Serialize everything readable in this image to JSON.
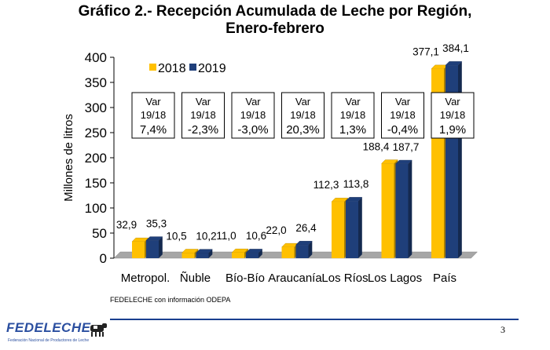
{
  "title_line1": "Gráfico 2.- Recepción Acumulada de Leche por Región,",
  "title_line2": "Enero-febrero",
  "source": "FEDELECHE con información ODEPA",
  "page_number": "3",
  "logo": {
    "name": "FEDELECHE",
    "tagline": "Federación Nacional de Productores de Leche"
  },
  "colors": {
    "s2018": "#FFC000",
    "s2019": "#1F3F7A",
    "floor": "#A6A6A6",
    "rule": "#1A3F8F"
  },
  "chart_data": {
    "type": "bar",
    "ylabel": "Millones de litros",
    "ylim": [
      0,
      400
    ],
    "yticks": [
      0,
      50,
      100,
      150,
      200,
      250,
      300,
      350,
      400
    ],
    "categories": [
      "Metropol.",
      "Ñuble",
      "Bío-Bío",
      "Araucanía",
      "Los Ríos",
      "Los Lagos",
      "País"
    ],
    "series": [
      {
        "name": "2018",
        "values": [
          32.9,
          10.5,
          11.0,
          22.0,
          112.3,
          188.4,
          377.1
        ],
        "labels": [
          "32,9",
          "10,5",
          "11,0",
          "22,0",
          "112,3",
          "188,4",
          "377,1"
        ]
      },
      {
        "name": "2019",
        "values": [
          35.3,
          10.2,
          10.6,
          26.4,
          113.8,
          187.7,
          384.1
        ],
        "labels": [
          "35,3",
          "10,2",
          "10,6",
          "26,4",
          "113,8",
          "187,7",
          "384,1"
        ]
      }
    ],
    "var_boxes": [
      {
        "line1": "Var",
        "line2": "19/18",
        "line3": "7,4%"
      },
      {
        "line1": "Var",
        "line2": "19/18",
        "line3": "-2,3%"
      },
      {
        "line1": "Var",
        "line2": "19/18",
        "line3": "-3,0%"
      },
      {
        "line1": "Var",
        "line2": "19/18",
        "line3": "20,3%"
      },
      {
        "line1": "Var",
        "line2": "19/18",
        "line3": "1,3%"
      },
      {
        "line1": "Var",
        "line2": "19/18",
        "line3": "-0,4%"
      },
      {
        "line1": "Var",
        "line2": "19/18",
        "line3": "1,9%"
      }
    ],
    "legend": "top-left"
  }
}
